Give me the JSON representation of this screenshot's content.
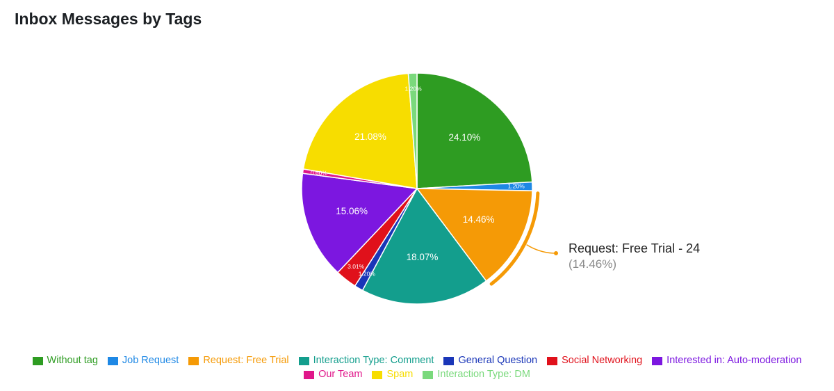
{
  "chart_data": {
    "type": "pie",
    "title": "Inbox Messages by Tags",
    "categories": [
      "Without tag",
      "Job Request",
      "Request: Free Trial",
      "Interaction Type: Comment",
      "General Question",
      "Social Networking",
      "Interested in: Auto-moderation",
      "Our Team",
      "Spam",
      "Interaction Type: DM"
    ],
    "values": [
      40,
      2,
      24,
      30,
      2,
      5,
      25,
      1,
      35,
      2
    ],
    "percent_labels": [
      "24.10%",
      "1.20%",
      "14.46%",
      "18.07%",
      "1.20%",
      "3.01%",
      "15.06%",
      "0.60%",
      "21.08%",
      "1.20%"
    ],
    "colors": [
      "#2e9c22",
      "#1e88e5",
      "#f59a06",
      "#139e8d",
      "#1a36b8",
      "#e0111b",
      "#7c17e0",
      "#e0178a",
      "#f7dd00",
      "#7ad97c"
    ],
    "legend_position": "bottom",
    "highlighted": {
      "index": 2,
      "tooltip_title": "Request: Free Trial - 24",
      "tooltip_percent": "(14.46%)"
    }
  }
}
